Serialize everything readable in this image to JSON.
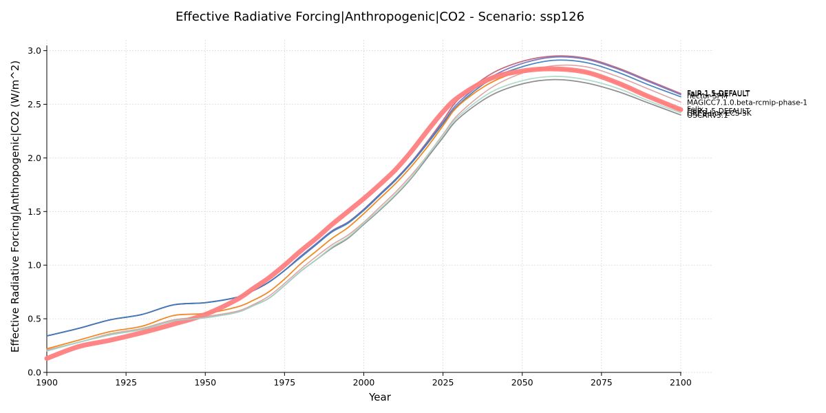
{
  "chart_data": {
    "type": "line",
    "title": "Effective Radiative Forcing|Anthropogenic|CO2 - Scenario: ssp126",
    "xlabel": "Year",
    "ylabel": "Effective Radiative Forcing|Anthropogenic|CO2 (W/m^2)",
    "xlim": [
      1900,
      2110
    ],
    "ylim": [
      0,
      3.1
    ],
    "xticks": [
      1900,
      1925,
      1950,
      1975,
      2000,
      2025,
      2050,
      2075,
      2100
    ],
    "xtick_labels": [
      "1900",
      "1925",
      "1950",
      "1975",
      "2000",
      "2025",
      "2050",
      "2075",
      "2100"
    ],
    "yticks": [
      0,
      0.5,
      1.0,
      1.5,
      2.0,
      2.5,
      3.0
    ],
    "ytick_labels": [
      "0.0",
      "0.5",
      "1.0",
      "1.5",
      "2.0",
      "2.5",
      "3.0"
    ],
    "grid": true,
    "x": [
      1900,
      1910,
      1920,
      1930,
      1940,
      1950,
      1960,
      1965,
      1970,
      1975,
      1980,
      1985,
      1990,
      1995,
      2000,
      2005,
      2010,
      2015,
      2020,
      2025,
      2030,
      2040,
      2050,
      2060,
      2070,
      2080,
      2090,
      2100
    ],
    "series": [
      {
        "name": "FaIR-1.5-DEFAULT",
        "color": "#b5485f",
        "width": 1.8,
        "opacity": 0.8,
        "values": [
          0.34,
          0.41,
          0.49,
          0.54,
          0.63,
          0.65,
          0.7,
          0.76,
          0.84,
          0.95,
          1.08,
          1.2,
          1.32,
          1.4,
          1.52,
          1.66,
          1.8,
          1.96,
          2.15,
          2.35,
          2.55,
          2.78,
          2.9,
          2.95,
          2.93,
          2.84,
          2.72,
          2.6
        ]
      },
      {
        "name": "FaIR-1.5-DEFAULT",
        "color": "#7070c0",
        "width": 1.8,
        "opacity": 0.9,
        "values": [
          0.34,
          0.41,
          0.49,
          0.54,
          0.63,
          0.65,
          0.7,
          0.76,
          0.84,
          0.95,
          1.08,
          1.2,
          1.32,
          1.4,
          1.52,
          1.66,
          1.8,
          1.96,
          2.14,
          2.33,
          2.52,
          2.75,
          2.88,
          2.94,
          2.92,
          2.83,
          2.71,
          2.59
        ]
      },
      {
        "name": "hector-SPM",
        "color": "#3a7ab5",
        "width": 1.8,
        "opacity": 0.9,
        "values": [
          0.34,
          0.41,
          0.49,
          0.54,
          0.63,
          0.65,
          0.7,
          0.76,
          0.84,
          0.95,
          1.07,
          1.19,
          1.31,
          1.39,
          1.51,
          1.65,
          1.79,
          1.95,
          2.13,
          2.32,
          2.5,
          2.73,
          2.85,
          2.91,
          2.89,
          2.8,
          2.68,
          2.57
        ]
      },
      {
        "name": "MAGICC7.1.0.beta-rcmip-phase-1",
        "color": "#d99a9a",
        "width": 1.6,
        "opacity": 0.9,
        "values": [
          0.21,
          0.28,
          0.36,
          0.41,
          0.49,
          0.52,
          0.57,
          0.63,
          0.71,
          0.83,
          0.96,
          1.08,
          1.19,
          1.28,
          1.4,
          1.54,
          1.68,
          1.84,
          2.02,
          2.22,
          2.41,
          2.65,
          2.79,
          2.86,
          2.85,
          2.76,
          2.64,
          2.52
        ]
      },
      {
        "name": "FaIR-1.5-DEFAULT",
        "color": "#f08a24",
        "width": 1.8,
        "opacity": 1.0,
        "values": [
          0.22,
          0.3,
          0.38,
          0.43,
          0.53,
          0.55,
          0.61,
          0.67,
          0.75,
          0.87,
          1.01,
          1.13,
          1.25,
          1.35,
          1.48,
          1.62,
          1.76,
          1.92,
          2.1,
          2.3,
          2.49,
          2.7,
          2.81,
          2.83,
          2.8,
          2.7,
          2.57,
          2.44
        ]
      },
      {
        "name": "Felix",
        "color": "#ff7f7f",
        "width": 7,
        "opacity": 0.95,
        "values": [
          0.13,
          0.24,
          0.3,
          0.37,
          0.45,
          0.54,
          0.68,
          0.78,
          0.88,
          1.0,
          1.13,
          1.25,
          1.38,
          1.5,
          1.62,
          1.75,
          1.89,
          2.06,
          2.25,
          2.43,
          2.57,
          2.74,
          2.81,
          2.83,
          2.8,
          2.7,
          2.57,
          2.45
        ]
      },
      {
        "name": "OSCARv3.1",
        "color": "#8a8a8a",
        "width": 1.8,
        "opacity": 0.95,
        "values": [
          0.2,
          0.28,
          0.35,
          0.4,
          0.48,
          0.51,
          0.56,
          0.62,
          0.69,
          0.81,
          0.94,
          1.05,
          1.16,
          1.25,
          1.38,
          1.51,
          1.65,
          1.81,
          2.0,
          2.19,
          2.37,
          2.58,
          2.69,
          2.73,
          2.7,
          2.62,
          2.51,
          2.4
        ]
      },
      {
        "name": "GREB-box-ECS-3K",
        "color": "#a8d8c8",
        "width": 1.8,
        "opacity": 0.9,
        "values": [
          0.2,
          0.28,
          0.35,
          0.4,
          0.48,
          0.51,
          0.56,
          0.62,
          0.69,
          0.81,
          0.94,
          1.05,
          1.17,
          1.26,
          1.39,
          1.52,
          1.66,
          1.82,
          2.02,
          2.21,
          2.39,
          2.61,
          2.72,
          2.76,
          2.73,
          2.65,
          2.53,
          2.42
        ]
      }
    ],
    "end_labels": [
      {
        "text": "FaIR-1.5-DEFAULT",
        "y": 2.605
      },
      {
        "text": "FaIR-1.5-DEFAULT",
        "y": 2.6
      },
      {
        "text": "hector-SPM",
        "y": 2.58
      },
      {
        "text": "MAGICC7.1.0.beta-rcmip-phase-1",
        "y": 2.52
      },
      {
        "text": "Felix",
        "y": 2.455
      },
      {
        "text": "FaIR-1.5-DEFAULT",
        "y": 2.44
      },
      {
        "text": "GREB-box-ECS-3K",
        "y": 2.42
      },
      {
        "text": "OSCARv3.1",
        "y": 2.4
      }
    ]
  }
}
